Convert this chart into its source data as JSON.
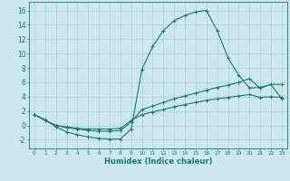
{
  "xlabel": "Humidex (Indice chaleur)",
  "background_color": "#cce8ec",
  "line_color": "#1a7a6e",
  "grid_color": "#b0d4d8",
  "xlim": [
    -0.5,
    23.5
  ],
  "ylim": [
    -3.2,
    17.2
  ],
  "xticks": [
    0,
    1,
    2,
    3,
    4,
    5,
    6,
    7,
    8,
    9,
    10,
    11,
    12,
    13,
    14,
    15,
    16,
    17,
    18,
    19,
    20,
    21,
    22,
    23
  ],
  "yticks": [
    -2,
    0,
    2,
    4,
    6,
    8,
    10,
    12,
    14,
    16
  ],
  "line1_x": [
    0,
    1,
    2,
    3,
    4,
    5,
    6,
    7,
    8,
    9,
    10,
    11,
    12,
    13,
    14,
    15,
    16,
    17,
    18,
    19,
    20,
    21,
    22,
    23
  ],
  "line1_y": [
    1.5,
    0.8,
    -0.2,
    -0.9,
    -1.3,
    -1.6,
    -1.8,
    -1.9,
    -1.9,
    -0.5,
    7.8,
    11.0,
    13.2,
    14.6,
    15.3,
    15.8,
    16.0,
    13.2,
    9.4,
    7.0,
    5.2,
    5.3,
    5.7,
    3.7
  ],
  "line2_x": [
    0,
    1,
    2,
    3,
    4,
    5,
    6,
    7,
    8,
    9,
    10,
    11,
    12,
    13,
    14,
    15,
    16,
    17,
    18,
    19,
    20,
    21,
    22,
    23
  ],
  "line2_y": [
    1.5,
    0.7,
    0.0,
    -0.3,
    -0.5,
    -0.7,
    -0.8,
    -0.8,
    -0.7,
    0.5,
    2.2,
    2.7,
    3.2,
    3.7,
    4.1,
    4.5,
    4.9,
    5.3,
    5.6,
    6.0,
    6.5,
    5.2,
    5.7,
    5.7
  ],
  "line3_x": [
    0,
    1,
    2,
    3,
    4,
    5,
    6,
    7,
    8,
    9,
    10,
    11,
    12,
    13,
    14,
    15,
    16,
    17,
    18,
    19,
    20,
    21,
    22,
    23
  ],
  "line3_y": [
    1.5,
    0.7,
    0.0,
    -0.2,
    -0.4,
    -0.5,
    -0.5,
    -0.5,
    -0.4,
    0.7,
    1.5,
    1.9,
    2.2,
    2.6,
    2.9,
    3.2,
    3.5,
    3.7,
    3.9,
    4.1,
    4.3,
    3.9,
    4.0,
    3.9
  ]
}
